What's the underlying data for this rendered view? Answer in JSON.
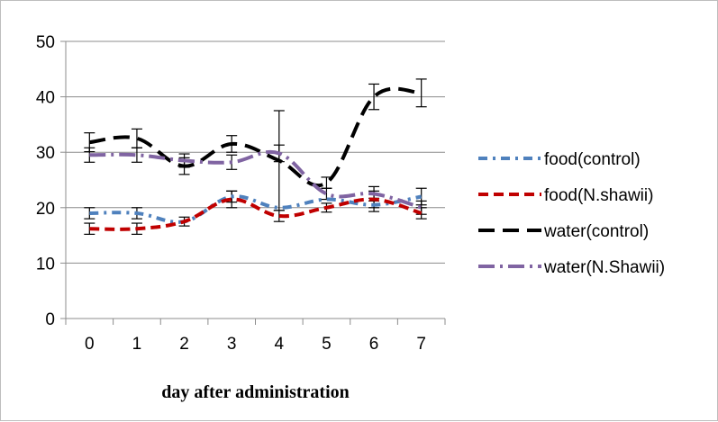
{
  "chart_data": {
    "type": "line",
    "xlabel": "day after administration",
    "ylabel": "",
    "categories": [
      "0",
      "1",
      "2",
      "3",
      "4",
      "5",
      "6",
      "7"
    ],
    "ylim": [
      0,
      50
    ],
    "yticks": [
      0,
      10,
      20,
      30,
      40,
      50
    ],
    "grid": true,
    "legend_position": "right",
    "series": [
      {
        "name": "food(control)",
        "color": "#4f81bd",
        "dash": "dash-dot",
        "values": [
          19,
          19,
          17.5,
          22,
          20,
          21.5,
          20.5,
          22
        ],
        "errors": [
          1,
          1,
          null,
          1,
          null,
          null,
          1.2,
          1.5
        ]
      },
      {
        "name": "food(N.shawii)",
        "color": "#c00000",
        "dash": "dash",
        "values": [
          16.2,
          16.2,
          17.5,
          21.5,
          18.5,
          20,
          21.5,
          19
        ],
        "errors": [
          1,
          1,
          0.8,
          1.5,
          1,
          0.8,
          1.5,
          1
        ]
      },
      {
        "name": "water(control)",
        "color": "#000000",
        "dash": "longdash",
        "values": [
          31.8,
          32.5,
          27.5,
          31.5,
          28.5,
          24.5,
          40,
          40.7
        ],
        "errors": [
          1.7,
          1.7,
          1.5,
          1.5,
          9,
          1,
          2.3,
          2.5
        ]
      },
      {
        "name": "water(N.Shawii)",
        "color": "#8064a2",
        "dash": "longdash-dot",
        "values": [
          29.5,
          29.5,
          28.5,
          28.2,
          29.8,
          22.5,
          22.5,
          20
        ],
        "errors": [
          1.3,
          1.3,
          1.2,
          1.3,
          1.5,
          1,
          1.3,
          1.2
        ]
      }
    ]
  }
}
